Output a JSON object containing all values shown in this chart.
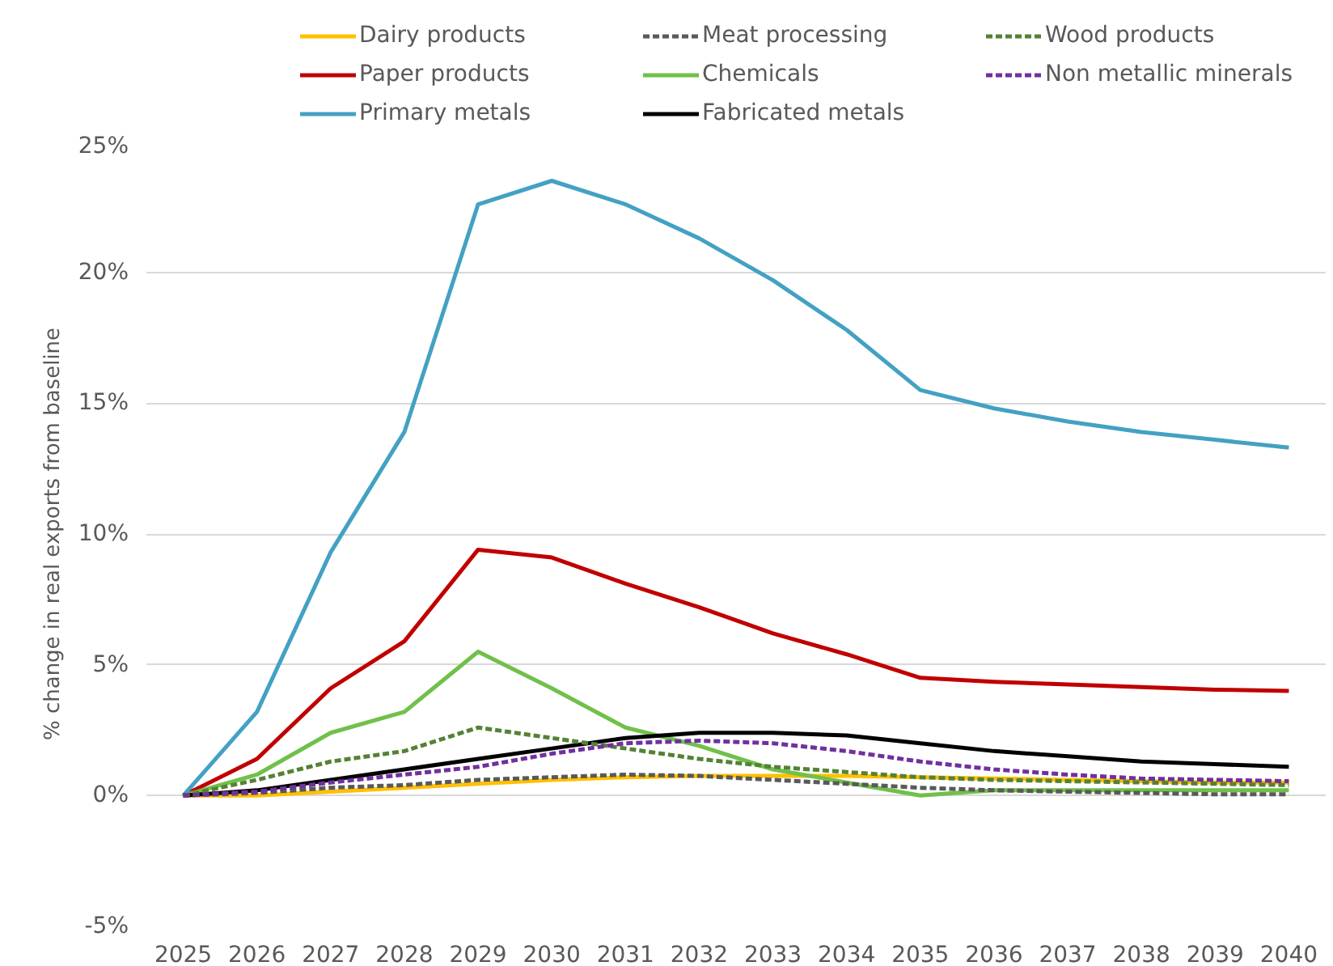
{
  "chart_data": {
    "type": "line",
    "ylabel": "% change in real exports from baseline",
    "categories": [
      "2025",
      "2026",
      "2027",
      "2028",
      "2029",
      "2030",
      "2031",
      "2032",
      "2033",
      "2034",
      "2035",
      "2036",
      "2037",
      "2038",
      "2039",
      "2040"
    ],
    "series": [
      {
        "name": "Dairy products",
        "color": "#ffc000",
        "line_style": "solid",
        "values": [
          0,
          0.0,
          0.15,
          0.3,
          0.45,
          0.6,
          0.7,
          0.75,
          0.75,
          0.75,
          0.7,
          0.65,
          0.6,
          0.55,
          0.5,
          0.5
        ]
      },
      {
        "name": "Meat processing",
        "color": "#595959",
        "line_style": "dashed",
        "values": [
          0,
          0.1,
          0.3,
          0.4,
          0.6,
          0.7,
          0.8,
          0.75,
          0.6,
          0.45,
          0.3,
          0.2,
          0.15,
          0.1,
          0.05,
          0.05
        ]
      },
      {
        "name": "Wood products",
        "color": "#548235",
        "line_style": "dashed",
        "values": [
          0,
          0.6,
          1.3,
          1.7,
          2.6,
          2.2,
          1.8,
          1.4,
          1.1,
          0.9,
          0.7,
          0.6,
          0.55,
          0.5,
          0.45,
          0.4
        ]
      },
      {
        "name": "Paper products",
        "color": "#c00000",
        "line_style": "solid",
        "values": [
          0,
          1.4,
          4.1,
          5.9,
          9.4,
          9.1,
          8.1,
          7.2,
          6.2,
          5.4,
          4.5,
          4.35,
          4.25,
          4.15,
          4.05,
          4.0
        ]
      },
      {
        "name": "Chemicals",
        "color": "#70c04a",
        "line_style": "solid",
        "values": [
          0,
          0.8,
          2.4,
          3.2,
          5.5,
          4.1,
          2.6,
          1.9,
          1.0,
          0.5,
          0.0,
          0.2,
          0.2,
          0.2,
          0.2,
          0.2
        ]
      },
      {
        "name": "Non metallic minerals",
        "color": "#7030a0",
        "line_style": "dashed",
        "values": [
          0,
          0.15,
          0.5,
          0.8,
          1.1,
          1.6,
          2.0,
          2.1,
          2.0,
          1.7,
          1.3,
          1.0,
          0.8,
          0.65,
          0.6,
          0.55
        ]
      },
      {
        "name": "Primary metals",
        "color": "#43a1c3",
        "line_style": "solid",
        "values": [
          0,
          3.2,
          9.3,
          13.9,
          22.6,
          23.5,
          22.6,
          21.3,
          19.7,
          17.8,
          15.5,
          14.8,
          14.3,
          13.9,
          13.6,
          13.3
        ]
      },
      {
        "name": "Fabricated metals",
        "color": "#000000",
        "line_style": "solid",
        "values": [
          0,
          0.2,
          0.6,
          1.0,
          1.4,
          1.8,
          2.2,
          2.4,
          2.4,
          2.3,
          2.0,
          1.7,
          1.5,
          1.3,
          1.2,
          1.1
        ]
      }
    ],
    "ylim": [
      -5,
      25
    ],
    "yticks": [
      {
        "value": -5,
        "label": "-5%"
      },
      {
        "value": 0,
        "label": "0%"
      },
      {
        "value": 5,
        "label": "5%"
      },
      {
        "value": 10,
        "label": "10%"
      },
      {
        "value": 15,
        "label": "15%"
      },
      {
        "value": 20,
        "label": "20%"
      },
      {
        "value": 25,
        "label": "25%"
      }
    ],
    "grid": "y",
    "legend": "top",
    "marker": "none"
  }
}
